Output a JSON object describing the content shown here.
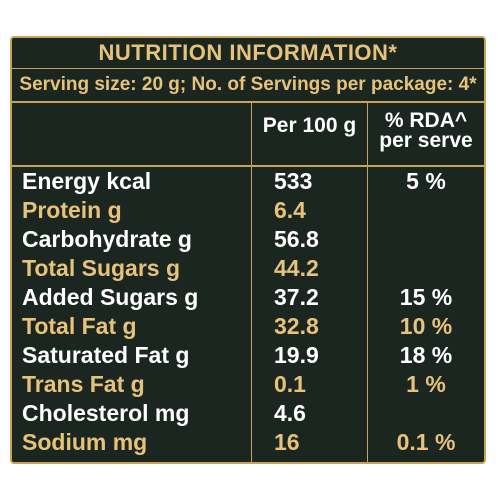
{
  "title": "NUTRITION INFORMATION*",
  "serving": "Serving size: 20 g; No. of Servings per package: 4*",
  "headers": {
    "per100": "Per 100 g",
    "rda_line1": "% RDA^",
    "rda_line2": "per serve"
  },
  "rows": [
    {
      "name": "Energy kcal",
      "value": "533",
      "rda": "5 %"
    },
    {
      "name": "Protein g",
      "value": "6.4",
      "rda": ""
    },
    {
      "name": "Carbohydrate g",
      "value": "56.8",
      "rda": ""
    },
    {
      "name": "Total Sugars g",
      "value": "44.2",
      "rda": ""
    },
    {
      "name": "Added Sugars g",
      "value": "37.2",
      "rda": "15 %"
    },
    {
      "name": "Total Fat g",
      "value": "32.8",
      "rda": "10 %"
    },
    {
      "name": "Saturated Fat g",
      "value": "19.9",
      "rda": "18 %"
    },
    {
      "name": "Trans Fat g",
      "value": "0.1",
      "rda": "1 %"
    },
    {
      "name": "Cholesterol mg",
      "value": "4.6",
      "rda": ""
    },
    {
      "name": "Sodium mg",
      "value": "16",
      "rda": "0.1 %"
    }
  ],
  "colors": {
    "background": "#1c2621",
    "gold": "#e6c27a",
    "border": "#c9a35a",
    "text": "#ffffff"
  }
}
